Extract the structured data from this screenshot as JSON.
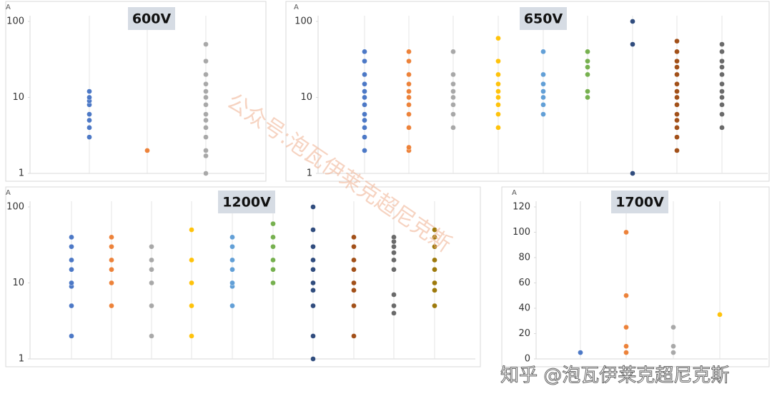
{
  "chart_data": [
    {
      "type": "strip",
      "title": "600V",
      "ylabel": "A",
      "log_scale": true,
      "ylim": [
        1,
        100
      ],
      "yticks": [
        1,
        10,
        100
      ],
      "series": [
        {
          "color": "#4472c4",
          "values": [
            3,
            4,
            5,
            6,
            8,
            9,
            10,
            12
          ]
        },
        {
          "color": "#ed7d31",
          "values": [
            2
          ]
        },
        {
          "color": "#a5a5a5",
          "values": [
            1,
            1.7,
            2,
            3,
            4,
            5,
            6,
            8,
            10,
            12,
            15,
            20,
            30,
            50
          ]
        }
      ]
    },
    {
      "type": "strip",
      "title": "650V",
      "ylabel": "A",
      "log_scale": true,
      "ylim": [
        1,
        100
      ],
      "yticks": [
        1,
        10,
        100
      ],
      "series": [
        {
          "color": "#4472c4",
          "values": [
            2,
            3,
            4,
            5,
            6,
            8,
            10,
            12,
            15,
            20,
            30,
            40
          ]
        },
        {
          "color": "#ed7d31",
          "values": [
            2,
            2.2,
            4,
            6,
            8,
            10,
            12,
            15,
            20,
            30,
            40
          ]
        },
        {
          "color": "#a5a5a5",
          "values": [
            4,
            6,
            8,
            10,
            12,
            15,
            20,
            40
          ]
        },
        {
          "color": "#ffc000",
          "values": [
            4,
            6,
            8,
            10,
            12,
            15,
            20,
            30,
            60
          ]
        },
        {
          "color": "#5b9bd5",
          "values": [
            6,
            8,
            10,
            12,
            15,
            20,
            40
          ]
        },
        {
          "color": "#70ad47",
          "values": [
            10,
            12,
            20,
            25,
            30,
            40
          ]
        },
        {
          "color": "#264478",
          "values": [
            1,
            50,
            100
          ]
        },
        {
          "color": "#9e480e",
          "values": [
            2,
            3,
            4,
            5,
            6,
            8,
            10,
            12,
            15,
            20,
            25,
            30,
            40,
            55
          ]
        },
        {
          "color": "#636363",
          "values": [
            4,
            6,
            8,
            10,
            12,
            15,
            20,
            25,
            30,
            40,
            50
          ]
        }
      ]
    },
    {
      "type": "strip",
      "title": "1200V",
      "ylabel": "A",
      "log_scale": true,
      "ylim": [
        1,
        100
      ],
      "yticks": [
        1,
        10,
        100
      ],
      "series": [
        {
          "color": "#4472c4",
          "values": [
            2,
            5,
            9,
            10,
            15,
            20,
            30,
            40
          ]
        },
        {
          "color": "#ed7d31",
          "values": [
            5,
            10,
            15,
            20,
            30,
            40
          ]
        },
        {
          "color": "#a5a5a5",
          "values": [
            2,
            5,
            10,
            15,
            20,
            30
          ]
        },
        {
          "color": "#ffc000",
          "values": [
            2,
            5,
            10,
            20,
            50
          ]
        },
        {
          "color": "#5b9bd5",
          "values": [
            5,
            9,
            10,
            15,
            20,
            30,
            40
          ]
        },
        {
          "color": "#70ad47",
          "values": [
            10,
            15,
            20,
            30,
            40,
            60
          ]
        },
        {
          "color": "#264478",
          "values": [
            1,
            2,
            5,
            8,
            10,
            15,
            20,
            30,
            50,
            100
          ]
        },
        {
          "color": "#9e480e",
          "values": [
            2,
            5,
            8,
            10,
            15,
            20,
            30,
            40
          ]
        },
        {
          "color": "#636363",
          "values": [
            4,
            5,
            7,
            15,
            20,
            25,
            30,
            35,
            40
          ]
        },
        {
          "color": "#997300",
          "values": [
            5,
            8,
            10,
            15,
            20,
            30,
            40,
            50
          ]
        }
      ]
    },
    {
      "type": "strip",
      "title": "1700V",
      "ylabel": "A",
      "log_scale": false,
      "ylim": [
        0,
        120
      ],
      "yticks": [
        0,
        20,
        40,
        60,
        80,
        100,
        120
      ],
      "series": [
        {
          "color": "#4472c4",
          "values": [
            5
          ]
        },
        {
          "color": "#ed7d31",
          "values": [
            5,
            10,
            25,
            50,
            100
          ]
        },
        {
          "color": "#a5a5a5",
          "values": [
            5,
            10,
            25
          ]
        },
        {
          "color": "#ffc000",
          "values": [
            35
          ]
        }
      ]
    }
  ],
  "watermarks": [
    "公众号:泡瓦伊莱克超尼克斯",
    "知乎 @泡瓦伊莱克超尼克斯"
  ]
}
